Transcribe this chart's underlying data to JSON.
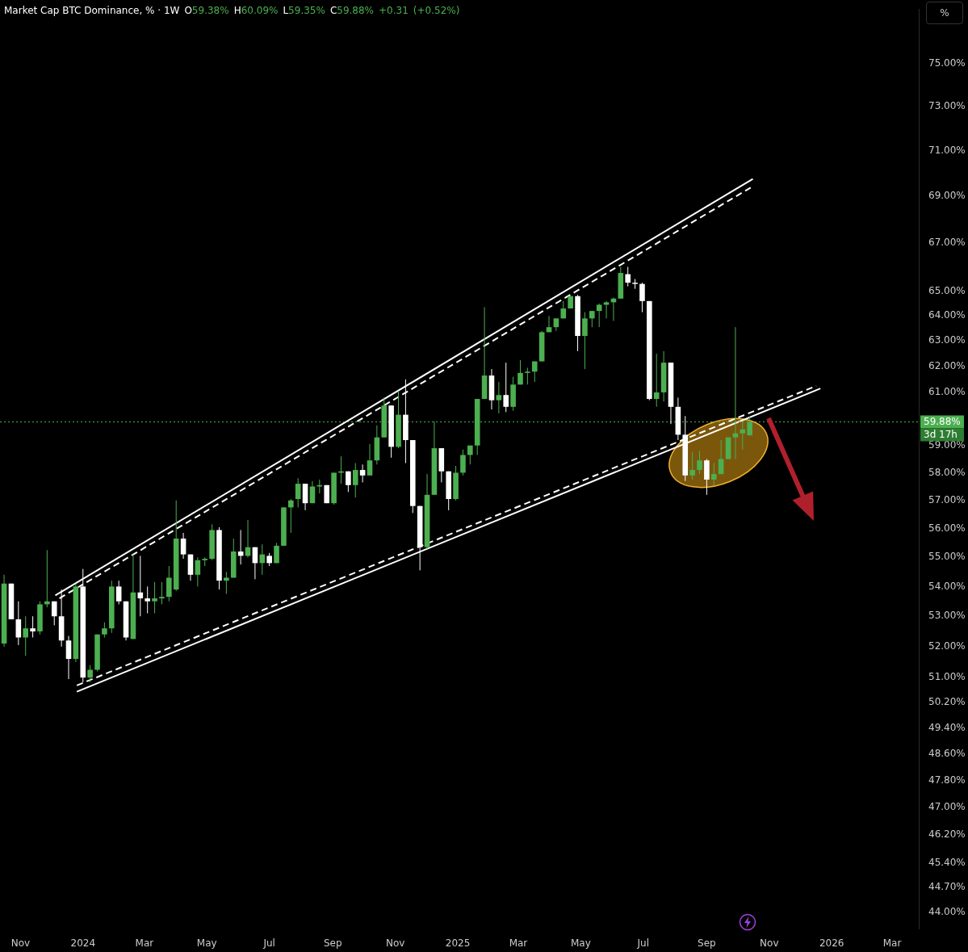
{
  "chart_data": {
    "type": "candlestick",
    "title": "Market Cap BTC Dominance, % · 1W",
    "subtitle": "O59.38% H60.09% L59.35% C59.88% +0.31 (+0.52%)",
    "x": [
      "2023-10-16",
      "2023-10-23",
      "2023-10-30",
      "2023-11-06",
      "2023-11-13",
      "2023-11-20",
      "2023-11-27",
      "2023-12-04",
      "2023-12-11",
      "2023-12-18",
      "2023-12-25",
      "2024-01-01",
      "2024-01-08",
      "2024-01-15",
      "2024-01-22",
      "2024-01-29",
      "2024-02-05",
      "2024-02-12",
      "2024-02-19",
      "2024-02-26",
      "2024-03-04",
      "2024-03-11",
      "2024-03-18",
      "2024-03-25",
      "2024-04-01",
      "2024-04-08",
      "2024-04-15",
      "2024-04-22",
      "2024-04-29",
      "2024-05-06",
      "2024-05-13",
      "2024-05-20",
      "2024-05-27",
      "2024-06-03",
      "2024-06-10",
      "2024-06-17",
      "2024-06-24",
      "2024-07-01",
      "2024-07-08",
      "2024-07-15",
      "2024-07-22",
      "2024-07-29",
      "2024-08-05",
      "2024-08-12",
      "2024-08-19",
      "2024-08-26",
      "2024-09-02",
      "2024-09-09",
      "2024-09-16",
      "2024-09-23",
      "2024-09-30",
      "2024-10-07",
      "2024-10-14",
      "2024-10-21",
      "2024-10-28",
      "2024-11-04",
      "2024-11-11",
      "2024-11-18",
      "2024-11-25",
      "2024-12-02",
      "2024-12-09",
      "2024-12-16",
      "2024-12-23",
      "2024-12-30",
      "2025-01-06",
      "2025-01-13",
      "2025-01-20",
      "2025-01-27",
      "2025-02-03",
      "2025-02-10",
      "2025-02-17",
      "2025-02-24",
      "2025-03-03",
      "2025-03-10",
      "2025-03-17",
      "2025-03-24",
      "2025-03-31",
      "2025-04-07",
      "2025-04-14",
      "2025-04-21",
      "2025-04-28",
      "2025-05-05",
      "2025-05-12",
      "2025-05-19",
      "2025-05-26",
      "2025-06-02",
      "2025-06-09",
      "2025-06-16",
      "2025-06-23",
      "2025-06-30",
      "2025-07-07",
      "2025-07-14",
      "2025-07-21",
      "2025-07-28",
      "2025-08-04",
      "2025-08-11",
      "2025-08-18",
      "2025-08-25",
      "2025-09-01",
      "2025-09-08",
      "2025-09-15",
      "2025-09-22",
      "2025-09-29",
      "2025-10-06",
      "2025-10-13"
    ],
    "ohlc": [
      [
        52.1,
        54.4,
        52.0,
        54.1
      ],
      [
        54.1,
        54.1,
        52.9,
        52.9
      ],
      [
        52.9,
        53.5,
        52.05,
        52.3
      ],
      [
        52.3,
        53.0,
        51.7,
        52.6
      ],
      [
        52.6,
        53.0,
        52.3,
        52.5
      ],
      [
        52.5,
        53.5,
        52.4,
        53.4
      ],
      [
        53.4,
        55.25,
        53.3,
        53.5
      ],
      [
        53.5,
        53.5,
        52.7,
        53.0
      ],
      [
        53.0,
        53.9,
        52.0,
        52.2
      ],
      [
        52.2,
        52.35,
        50.95,
        51.6
      ],
      [
        51.6,
        54.1,
        51.5,
        54.0
      ],
      [
        54.0,
        54.6,
        50.85,
        51.0
      ],
      [
        51.0,
        51.4,
        50.85,
        51.25
      ],
      [
        51.25,
        52.4,
        51.2,
        52.4
      ],
      [
        52.4,
        52.8,
        52.3,
        52.6
      ],
      [
        52.6,
        54.2,
        52.45,
        54.0
      ],
      [
        54.0,
        54.2,
        53.4,
        53.5
      ],
      [
        53.5,
        53.5,
        52.2,
        52.3
      ],
      [
        52.25,
        55.1,
        52.25,
        53.8
      ],
      [
        53.8,
        55.05,
        53.0,
        53.6
      ],
      [
        53.6,
        54.0,
        53.1,
        53.5
      ],
      [
        53.5,
        54.15,
        53.1,
        53.6
      ],
      [
        53.6,
        54.15,
        53.4,
        53.65
      ],
      [
        53.65,
        54.7,
        53.5,
        54.3
      ],
      [
        53.9,
        57.0,
        53.85,
        55.65
      ],
      [
        55.65,
        55.85,
        54.95,
        55.1
      ],
      [
        55.1,
        55.1,
        54.2,
        54.4
      ],
      [
        54.4,
        55.0,
        54.0,
        54.9
      ],
      [
        54.9,
        55.0,
        54.7,
        54.95
      ],
      [
        54.95,
        56.15,
        54.9,
        55.95
      ],
      [
        55.95,
        56.05,
        53.9,
        54.2
      ],
      [
        54.2,
        54.5,
        53.75,
        54.3
      ],
      [
        54.3,
        55.65,
        54.3,
        55.2
      ],
      [
        55.2,
        55.95,
        54.75,
        55.05
      ],
      [
        55.05,
        56.3,
        55.0,
        55.35
      ],
      [
        55.35,
        55.35,
        54.25,
        54.8
      ],
      [
        54.8,
        55.45,
        54.4,
        55.1
      ],
      [
        55.05,
        55.15,
        54.7,
        54.8
      ],
      [
        54.8,
        55.5,
        54.8,
        55.4
      ],
      [
        55.4,
        56.75,
        55.4,
        56.75
      ],
      [
        56.75,
        57.05,
        55.85,
        57.0
      ],
      [
        57.05,
        57.8,
        56.75,
        57.6
      ],
      [
        57.6,
        57.6,
        56.65,
        56.9
      ],
      [
        56.9,
        57.7,
        56.9,
        57.5
      ],
      [
        57.5,
        57.75,
        57.25,
        57.55
      ],
      [
        57.55,
        57.55,
        56.9,
        56.9
      ],
      [
        56.9,
        58.0,
        56.85,
        58.0
      ],
      [
        58.0,
        58.6,
        57.6,
        58.05
      ],
      [
        58.05,
        58.05,
        57.3,
        57.55
      ],
      [
        57.55,
        58.35,
        57.1,
        58.1
      ],
      [
        58.1,
        58.3,
        57.65,
        57.9
      ],
      [
        57.9,
        59.05,
        57.9,
        58.45
      ],
      [
        58.45,
        59.75,
        58.3,
        59.3
      ],
      [
        59.3,
        60.8,
        59.3,
        60.5
      ],
      [
        60.5,
        60.5,
        58.55,
        58.95
      ],
      [
        58.95,
        61.05,
        58.9,
        60.15
      ],
      [
        60.15,
        61.5,
        58.35,
        59.2
      ],
      [
        59.2,
        59.2,
        56.55,
        56.8
      ],
      [
        56.8,
        56.8,
        54.55,
        55.35
      ],
      [
        55.35,
        57.95,
        55.3,
        57.2
      ],
      [
        57.2,
        59.9,
        57.2,
        58.9
      ],
      [
        58.9,
        58.9,
        57.65,
        58.05
      ],
      [
        58.05,
        58.05,
        56.65,
        57.05
      ],
      [
        57.05,
        58.25,
        57.0,
        58.0
      ],
      [
        58.0,
        58.85,
        57.9,
        58.65
      ],
      [
        58.65,
        59.0,
        58.3,
        59.0
      ],
      [
        59.0,
        60.75,
        58.65,
        60.75
      ],
      [
        60.75,
        64.35,
        60.75,
        61.65
      ],
      [
        61.65,
        61.9,
        60.35,
        60.7
      ],
      [
        60.7,
        61.4,
        60.2,
        60.9
      ],
      [
        60.9,
        62.15,
        60.25,
        60.45
      ],
      [
        60.45,
        61.6,
        60.3,
        61.3
      ],
      [
        61.3,
        62.25,
        61.3,
        61.75
      ],
      [
        61.75,
        61.95,
        61.3,
        61.8
      ],
      [
        61.8,
        62.2,
        61.4,
        62.2
      ],
      [
        62.2,
        63.4,
        62.2,
        63.35
      ],
      [
        63.35,
        64.0,
        63.35,
        63.55
      ],
      [
        63.55,
        63.9,
        63.4,
        63.9
      ],
      [
        63.9,
        64.6,
        63.9,
        64.3
      ],
      [
        64.3,
        64.85,
        64.3,
        64.8
      ],
      [
        64.8,
        64.85,
        62.6,
        63.2
      ],
      [
        63.2,
        64.15,
        61.9,
        63.9
      ],
      [
        63.9,
        64.2,
        63.55,
        64.2
      ],
      [
        64.2,
        64.5,
        63.55,
        64.45
      ],
      [
        64.45,
        64.6,
        63.9,
        64.55
      ],
      [
        64.55,
        64.75,
        63.8,
        64.7
      ],
      [
        64.7,
        66.0,
        64.7,
        65.75
      ],
      [
        65.7,
        66.0,
        65.2,
        65.35
      ],
      [
        65.35,
        65.5,
        65.1,
        65.3
      ],
      [
        65.3,
        65.35,
        64.15,
        64.6
      ],
      [
        64.6,
        64.6,
        60.7,
        60.75
      ],
      [
        60.75,
        62.5,
        60.45,
        61.0
      ],
      [
        61.0,
        62.6,
        60.65,
        62.15
      ],
      [
        62.15,
        62.15,
        59.8,
        60.45
      ],
      [
        60.45,
        60.8,
        59.2,
        59.4
      ],
      [
        59.4,
        60.1,
        57.7,
        57.9
      ],
      [
        57.9,
        58.75,
        57.75,
        58.1
      ],
      [
        58.1,
        58.8,
        57.95,
        58.45
      ],
      [
        58.45,
        58.5,
        57.2,
        57.75
      ],
      [
        57.75,
        58.35,
        57.55,
        57.95
      ],
      [
        57.95,
        59.2,
        57.95,
        58.5
      ],
      [
        58.5,
        59.3,
        58.5,
        59.3
      ],
      [
        59.3,
        63.55,
        58.5,
        59.45
      ],
      [
        59.45,
        59.9,
        58.85,
        59.6
      ],
      [
        59.38,
        60.09,
        59.35,
        59.88
      ]
    ],
    "colors": [
      "#4caf50",
      "#ffffff",
      "#ffffff",
      "#4caf50",
      "#ffffff",
      "#4caf50",
      "#4caf50",
      "#ffffff",
      "#ffffff",
      "#ffffff",
      "#4caf50",
      "#ffffff",
      "#4caf50",
      "#4caf50",
      "#4caf50",
      "#4caf50",
      "#ffffff",
      "#ffffff",
      "#4caf50",
      "#ffffff",
      "#ffffff",
      "#4caf50",
      "#4caf50",
      "#4caf50",
      "#4caf50",
      "#ffffff",
      "#ffffff",
      "#4caf50",
      "#4caf50",
      "#4caf50",
      "#ffffff",
      "#4caf50",
      "#4caf50",
      "#ffffff",
      "#4caf50",
      "#ffffff",
      "#4caf50",
      "#ffffff",
      "#4caf50",
      "#4caf50",
      "#4caf50",
      "#4caf50",
      "#ffffff",
      "#4caf50",
      "#4caf50",
      "#ffffff",
      "#4caf50",
      "#4caf50",
      "#ffffff",
      "#4caf50",
      "#ffffff",
      "#4caf50",
      "#4caf50",
      "#4caf50",
      "#ffffff",
      "#4caf50",
      "#ffffff",
      "#ffffff",
      "#ffffff",
      "#4caf50",
      "#4caf50",
      "#ffffff",
      "#ffffff",
      "#4caf50",
      "#4caf50",
      "#4caf50",
      "#4caf50",
      "#4caf50",
      "#ffffff",
      "#4caf50",
      "#ffffff",
      "#4caf50",
      "#4caf50",
      "#4caf50",
      "#4caf50",
      "#4caf50",
      "#4caf50",
      "#4caf50",
      "#4caf50",
      "#4caf50",
      "#ffffff",
      "#4caf50",
      "#4caf50",
      "#4caf50",
      "#4caf50",
      "#4caf50",
      "#4caf50",
      "#ffffff",
      "#ffffff",
      "#ffffff",
      "#ffffff",
      "#4caf50",
      "#4caf50",
      "#ffffff",
      "#ffffff",
      "#ffffff",
      "#4caf50",
      "#4caf50",
      "#ffffff",
      "#4caf50",
      "#4caf50",
      "#4caf50",
      "#4caf50",
      "#4caf50",
      "#4caf50"
    ],
    "series": [
      {
        "type": "line",
        "x": [
          "2023-12-05",
          "2025-10-16"
        ],
        "values": [
          53.7,
          69.75
        ],
        "color": "#ffffff",
        "line_style": "solid"
      },
      {
        "type": "line",
        "x": [
          "2023-12-09",
          "2025-10-15"
        ],
        "values": [
          53.6,
          69.4
        ],
        "color": "#ffffff",
        "line_style": "dashed"
      },
      {
        "type": "line",
        "x": [
          "2023-12-26",
          "2025-12-21"
        ],
        "values": [
          50.55,
          61.15
        ],
        "color": "#ffffff",
        "line_style": "solid"
      },
      {
        "type": "line",
        "x": [
          "2023-12-26",
          "2025-12-17"
        ],
        "values": [
          50.75,
          61.25
        ],
        "color": "#ffffff",
        "line_style": "dashed"
      }
    ],
    "xlim": [
      "2023-10-12",
      "2026-03-27"
    ],
    "xticks": [
      {
        "value": "2023-11-01",
        "label": "Nov"
      },
      {
        "value": "2024-01-01",
        "label": "2024"
      },
      {
        "value": "2024-03-01",
        "label": "Mar"
      },
      {
        "value": "2024-05-01",
        "label": "May"
      },
      {
        "value": "2024-07-01",
        "label": "Jul"
      },
      {
        "value": "2024-09-01",
        "label": "Sep"
      },
      {
        "value": "2024-11-01",
        "label": "Nov"
      },
      {
        "value": "2025-01-01",
        "label": "2025"
      },
      {
        "value": "2025-03-01",
        "label": "Mar"
      },
      {
        "value": "2025-05-01",
        "label": "May"
      },
      {
        "value": "2025-07-01",
        "label": "Jul"
      },
      {
        "value": "2025-09-01",
        "label": "Sep"
      },
      {
        "value": "2025-11-01",
        "label": "Nov"
      },
      {
        "value": "2026-01-01",
        "label": "2026"
      },
      {
        "value": "2026-03-01",
        "label": "Mar"
      }
    ],
    "ylim": [
      43.55,
      77.6
    ],
    "log": "y",
    "yticks": [
      {
        "value": 44,
        "label": "44.00%"
      },
      {
        "value": 44.7,
        "label": "44.70%"
      },
      {
        "value": 45.4,
        "label": "45.40%"
      },
      {
        "value": 46.2,
        "label": "46.20%"
      },
      {
        "value": 47,
        "label": "47.00%"
      },
      {
        "value": 47.8,
        "label": "47.80%"
      },
      {
        "value": 48.6,
        "label": "48.60%"
      },
      {
        "value": 49.4,
        "label": "49.40%"
      },
      {
        "value": 50.2,
        "label": "50.20%"
      },
      {
        "value": 51,
        "label": "51.00%"
      },
      {
        "value": 52,
        "label": "52.00%"
      },
      {
        "value": 53,
        "label": "53.00%"
      },
      {
        "value": 54,
        "label": "54.00%"
      },
      {
        "value": 55,
        "label": "55.00%"
      },
      {
        "value": 56,
        "label": "56.00%"
      },
      {
        "value": 57,
        "label": "57.00%"
      },
      {
        "value": 58,
        "label": "58.00%"
      },
      {
        "value": 59,
        "label": "59.00%"
      },
      {
        "value": 61,
        "label": "61.00%"
      },
      {
        "value": 62,
        "label": "62.00%"
      },
      {
        "value": 63,
        "label": "63.00%"
      },
      {
        "value": 64,
        "label": "64.00%"
      },
      {
        "value": 65,
        "label": "65.00%"
      },
      {
        "value": 67,
        "label": "67.00%"
      },
      {
        "value": 69,
        "label": "69.00%"
      },
      {
        "value": 71,
        "label": "71.00%"
      },
      {
        "value": 73,
        "label": "73.00%"
      },
      {
        "value": 75,
        "label": "75.00%"
      }
    ],
    "ref_lines": [
      {
        "axis": "y",
        "value": 59.88,
        "label": "59.88%",
        "color": "#4caf50",
        "line_style": "dotted"
      }
    ],
    "annotations": [
      "3d 17h",
      "%"
    ]
  }
}
